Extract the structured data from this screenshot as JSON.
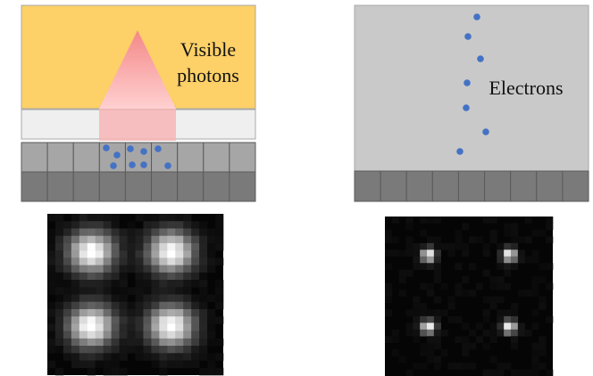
{
  "left_panel": {
    "label_line1": "Visible",
    "label_line2": "photons",
    "colors": {
      "scintillator": "#fdd068",
      "layer": "#efefef",
      "pixel_top": "#a6a6a6",
      "pixel_bottom": "#7a7a7a",
      "cone_top": "#f48888",
      "cone_bottom": "#ffd0d0",
      "charge": "#4472c4"
    }
  },
  "right_panel": {
    "label": "Electrons",
    "colors": {
      "background": "#c9c9c9",
      "pixel": "#7a7a7a",
      "electron": "#4472c4"
    }
  },
  "images": [
    {
      "name": "blurred-spots",
      "spot_sigma": 2.0,
      "spot_peak": 255
    },
    {
      "name": "sharp-spots",
      "spot_sigma": 0.7,
      "spot_peak": 255
    }
  ]
}
